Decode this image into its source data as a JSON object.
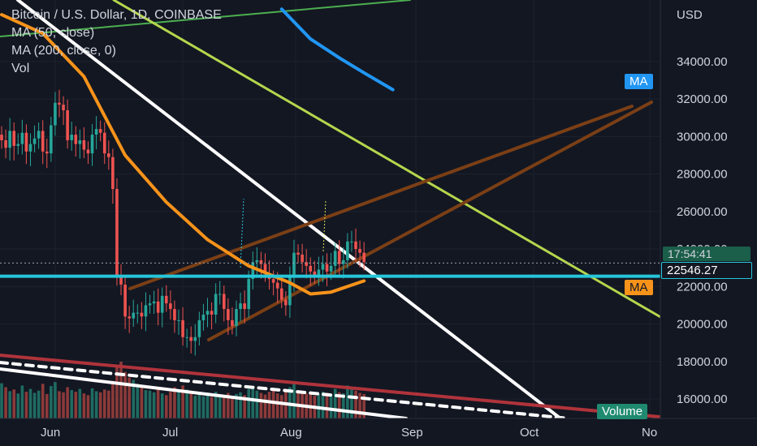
{
  "legend": {
    "title": "Bitcoin / U.S. Dollar, 1D, COINBASE",
    "ma50": "MA (50, close)",
    "ma200": "MA (200, close, 0)",
    "vol": "Vol"
  },
  "price_axis": {
    "currency": "USD",
    "ticks": [
      "34000.00",
      "32000.00",
      "30000.00",
      "28000.00",
      "26000.00",
      "24000.00",
      "22000.00",
      "20000.00",
      "18000.00",
      "16000.00"
    ]
  },
  "time_axis": {
    "ticks": [
      "Jun",
      "Jul",
      "Aug",
      "Sep",
      "Oct",
      "No"
    ]
  },
  "tags": {
    "ma_blue": "MA",
    "ma_orange": "MA",
    "countdown": "17:54:41",
    "level": "22546.27",
    "volume": "Volume"
  },
  "colors": {
    "background": "#131722",
    "up": "#26a69a",
    "down": "#ef5350",
    "ma50": "#f7931a",
    "ma200": "#2196f3",
    "support": "#26c6da",
    "trend_white": "#ffffff",
    "trend_lime": "#b5d64c",
    "trend_brown": "#7b3f15",
    "trend_red": "#b0333b",
    "trend_green": "#4caf50"
  },
  "chart_data": {
    "type": "candlestick",
    "symbol": "Bitcoin / U.S. Dollar",
    "timeframe": "1D",
    "exchange": "COINBASE",
    "y_range": [
      14500,
      37000
    ],
    "horizontal_level": 22546.27,
    "current_price": 23250,
    "candles_day_index_start": 0,
    "candles_close": [
      29800,
      29400,
      30300,
      29500,
      29600,
      30200,
      29200,
      29600,
      29900,
      30300,
      29200,
      29100,
      30600,
      31800,
      31700,
      31400,
      29800,
      30100,
      29600,
      29800,
      29300,
      29100,
      30100,
      30400,
      30200,
      29100,
      28900,
      27200,
      22500,
      22100,
      20400,
      20300,
      20600,
      20600,
      20400,
      21000,
      21100,
      21200,
      20600,
      21500,
      21100,
      20800,
      20200,
      20200,
      19300,
      19300,
      19100,
      19300,
      20200,
      20500,
      20700,
      20500,
      21600,
      21600,
      20800,
      20200,
      19900,
      20800,
      21100,
      20800,
      22400,
      23300,
      23400,
      23200,
      22700,
      22400,
      22200,
      21900,
      21300,
      21000,
      22500,
      23800,
      23700,
      23300,
      23100,
      22800,
      22600,
      22900,
      23200,
      22800,
      23100,
      23900,
      23200,
      23400,
      24400,
      24400,
      24000,
      23800,
      23300
    ],
    "ma50": [
      [
        0,
        36500
      ],
      [
        10,
        35500
      ],
      [
        20,
        33200
      ],
      [
        30,
        29000
      ],
      [
        40,
        26500
      ],
      [
        50,
        24500
      ],
      [
        60,
        23100
      ],
      [
        70,
        22200
      ],
      [
        75,
        21600
      ],
      [
        80,
        21700
      ],
      [
        88,
        22300
      ]
    ],
    "ma200": [
      [
        68,
        36800
      ],
      [
        75,
        35200
      ],
      [
        82,
        34200
      ],
      [
        88,
        33400
      ],
      [
        95,
        32500
      ]
    ],
    "volume": [
      0.62,
      0.55,
      0.48,
      0.51,
      0.44,
      0.58,
      0.47,
      0.52,
      0.45,
      0.49,
      0.61,
      0.43,
      0.57,
      0.64,
      0.48,
      0.46,
      0.55,
      0.5,
      0.47,
      0.52,
      0.44,
      0.41,
      0.53,
      0.48,
      0.46,
      0.51,
      0.49,
      0.66,
      0.95,
      1.0,
      0.82,
      0.72,
      0.68,
      0.61,
      0.55,
      0.5,
      0.49,
      0.46,
      0.52,
      0.44,
      0.41,
      0.47,
      0.55,
      0.49,
      0.58,
      0.51,
      0.46,
      0.4,
      0.44,
      0.39,
      0.42,
      0.38,
      0.47,
      0.43,
      0.41,
      0.45,
      0.4,
      0.43,
      0.46,
      0.41,
      0.52,
      0.57,
      0.49,
      0.45,
      0.42,
      0.47,
      0.5,
      0.44,
      0.41,
      0.48,
      0.55,
      0.62,
      0.5,
      0.46,
      0.44,
      0.42,
      0.4,
      0.43,
      0.47,
      0.45,
      0.41,
      0.52,
      0.46,
      0.44,
      0.58,
      0.53,
      0.49,
      0.45,
      0.43
    ]
  }
}
